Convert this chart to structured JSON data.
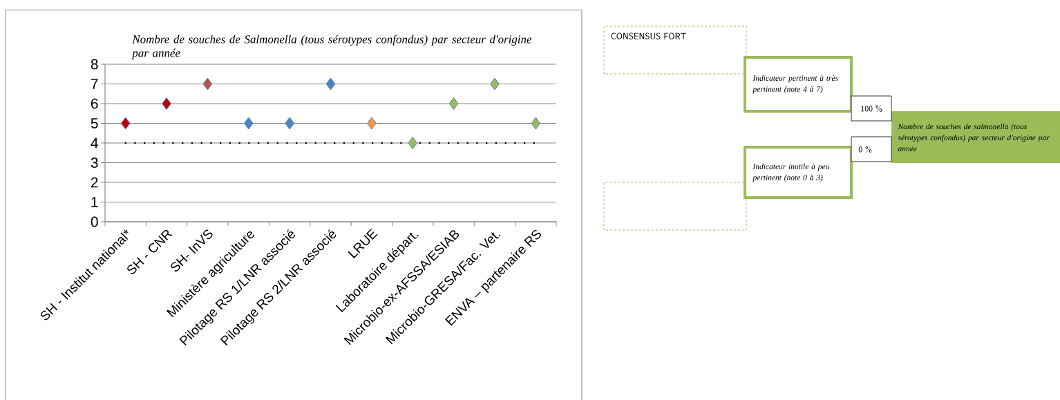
{
  "chart_data": [
    {
      "type": "scatter",
      "title": "Nombre de souches de Salmonella (tous sérotypes confondus) par secteur d'origine par année",
      "categories": [
        "SH - Institut national*",
        "SH - CNR",
        "SH- InVS",
        "Ministère agriculture",
        "Pilotage RS 1/LNR associé",
        "Pilotage RS 2/LNR associé",
        "LRUE",
        "Laboratoire départ.",
        "Microbio-ex-AFSSA/ESIAB",
        "Microbio-GRESA/Fac. Vet.",
        "ENVA – partenaire RS"
      ],
      "series": [
        {
          "values": [
            5,
            6,
            7,
            5,
            5,
            7,
            5,
            4,
            6,
            7,
            5
          ],
          "colors": [
            "#c00000",
            "#c00000",
            "#c0504d",
            "#4f81bd",
            "#4f81bd",
            "#4f81bd",
            "#f79646",
            "#9bbb59",
            "#9bbb59",
            "#9bbb59",
            "#9bbb59"
          ]
        }
      ],
      "marker": "diamond",
      "ylim": [
        0,
        8
      ],
      "yticks": [
        0,
        1,
        2,
        3,
        4,
        5,
        6,
        7,
        8
      ],
      "grid": "y",
      "ref_lines": [
        {
          "axis": "y",
          "value": 4,
          "color": "#000000",
          "line_style": "dotted"
        }
      ]
    },
    {
      "type": "other",
      "title": "CONSENSUS FORT",
      "annotations": [
        "Indicateur pertinent à très pertinent (note 4 à 7)",
        "100 %",
        "Nombre de souches de salmonella (tous sérotypes confondus) par secteur d'origine par année",
        "0 %",
        "Indicateur inutile à peu pertinent (note 0 à 3)"
      ]
    }
  ]
}
